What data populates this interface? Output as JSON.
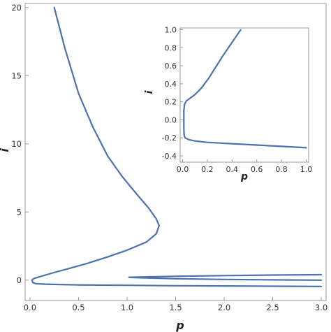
{
  "chart_data": [
    {
      "type": "line",
      "title": "",
      "xlabel": "p",
      "ylabel": "i",
      "xlim": [
        -0.05,
        3.05
      ],
      "ylim": [
        -1.5,
        20.3
      ],
      "xticks": [
        0.0,
        0.5,
        1.0,
        1.5,
        2.0,
        2.5,
        3.0
      ],
      "xtick_labels": [
        "0.0",
        "0.5",
        "1.0",
        "1.5",
        "2.0",
        "2.5",
        "3.0"
      ],
      "yticks": [
        0,
        5,
        10,
        15,
        20
      ],
      "ytick_labels": [
        "0",
        "5",
        "10",
        "15",
        "20"
      ],
      "grid": false,
      "color": "#4C72B0",
      "series": [
        {
          "x": [
            0.25,
            0.36,
            0.5,
            0.65,
            0.8,
            0.95,
            1.1,
            1.22,
            1.3,
            1.33,
            1.3,
            1.2,
            1.0,
            0.8,
            0.6,
            0.4,
            0.22,
            0.1,
            0.04,
            0.02
          ],
          "y": [
            20.0,
            17.0,
            13.7,
            11.2,
            9.1,
            7.6,
            6.3,
            5.3,
            4.5,
            4.0,
            3.4,
            2.8,
            2.2,
            1.7,
            1.25,
            0.85,
            0.5,
            0.25,
            0.12,
            0.0
          ]
        },
        {
          "x": [
            0.02,
            0.03,
            0.06,
            0.15,
            0.5,
            1.0,
            1.5,
            2.0,
            2.5,
            3.0
          ],
          "y": [
            0.0,
            -0.18,
            -0.26,
            -0.3,
            -0.35,
            -0.38,
            -0.41,
            -0.43,
            -0.45,
            -0.47
          ]
        },
        {
          "x": [
            3.0,
            2.5,
            2.0,
            1.5,
            1.2,
            1.08,
            1.02
          ],
          "y": [
            0.4,
            0.37,
            0.33,
            0.28,
            0.24,
            0.22,
            0.2
          ]
        },
        {
          "x": [
            1.02,
            1.08,
            1.2,
            1.5,
            2.0,
            2.5,
            3.0
          ],
          "y": [
            0.2,
            0.18,
            0.16,
            0.1,
            0.05,
            0.02,
            0.0
          ]
        }
      ]
    },
    {
      "type": "line",
      "title": "",
      "xlabel": "p",
      "ylabel": "i",
      "xlim": [
        -0.02,
        1.02
      ],
      "ylim": [
        -0.47,
        1.02
      ],
      "xticks": [
        0.0,
        0.2,
        0.4,
        0.6,
        0.8,
        1.0
      ],
      "xtick_labels": [
        "0.0",
        "0.2",
        "0.4",
        "0.6",
        "0.8",
        "1.0"
      ],
      "yticks": [
        -0.4,
        -0.2,
        0.0,
        0.2,
        0.4,
        0.6,
        0.8,
        1.0
      ],
      "ytick_labels": [
        "-0.4",
        "-0.2",
        "0.0",
        "0.2",
        "0.4",
        "0.6",
        "0.8",
        "1.0"
      ],
      "grid": false,
      "color": "#4C72B0",
      "series": [
        {
          "x": [
            0.47,
            0.4,
            0.33,
            0.27,
            0.21,
            0.15,
            0.1,
            0.06,
            0.03,
            0.015,
            0.01,
            0.01,
            0.01,
            0.012,
            0.02,
            0.05,
            0.1,
            0.2,
            0.4,
            0.6,
            0.8,
            1.0
          ],
          "y": [
            1.0,
            0.86,
            0.72,
            0.59,
            0.46,
            0.35,
            0.28,
            0.24,
            0.21,
            0.17,
            0.1,
            0.0,
            -0.1,
            -0.17,
            -0.2,
            -0.22,
            -0.235,
            -0.25,
            -0.265,
            -0.28,
            -0.295,
            -0.31
          ]
        }
      ]
    }
  ]
}
